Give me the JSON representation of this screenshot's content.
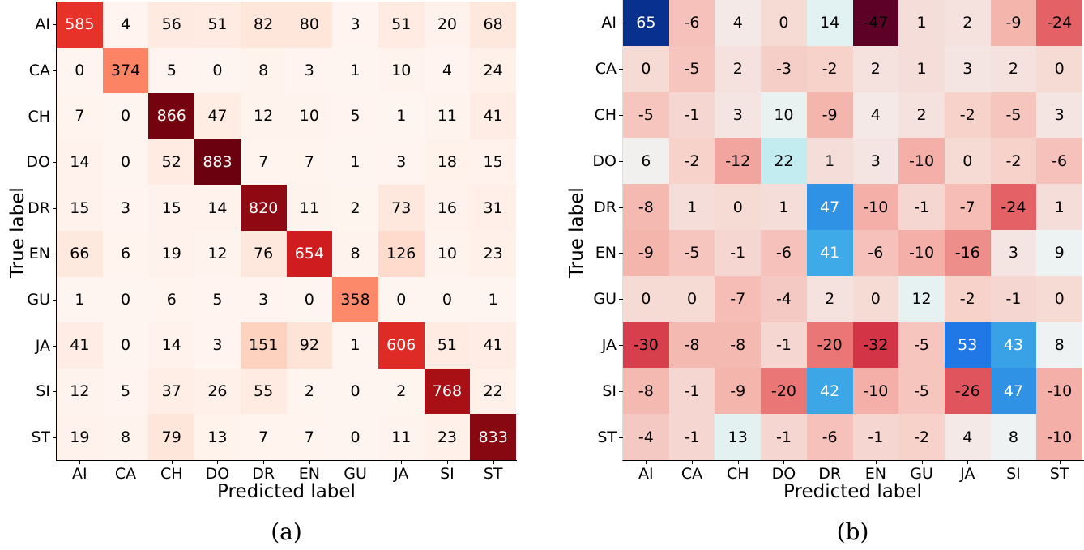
{
  "chart_data": [
    {
      "type": "heatmap",
      "title": "",
      "caption": "(a)",
      "xlabel": "Predicted label",
      "ylabel": "True label",
      "x_categories": [
        "AI",
        "CA",
        "CH",
        "DO",
        "DR",
        "EN",
        "GU",
        "JA",
        "SI",
        "ST"
      ],
      "y_categories": [
        "AI",
        "CA",
        "CH",
        "DO",
        "DR",
        "EN",
        "GU",
        "JA",
        "SI",
        "ST"
      ],
      "colormap": "Reds",
      "values": [
        [
          585,
          4,
          56,
          51,
          82,
          80,
          3,
          51,
          20,
          68
        ],
        [
          0,
          374,
          5,
          0,
          8,
          3,
          1,
          10,
          4,
          24
        ],
        [
          7,
          0,
          866,
          47,
          12,
          10,
          5,
          1,
          11,
          41
        ],
        [
          14,
          0,
          52,
          883,
          7,
          7,
          1,
          3,
          18,
          15
        ],
        [
          15,
          3,
          15,
          14,
          820,
          11,
          2,
          73,
          16,
          31
        ],
        [
          66,
          6,
          19,
          12,
          76,
          654,
          8,
          126,
          10,
          23
        ],
        [
          1,
          0,
          6,
          5,
          3,
          0,
          358,
          0,
          0,
          1
        ],
        [
          41,
          0,
          14,
          3,
          151,
          92,
          1,
          606,
          51,
          41
        ],
        [
          12,
          5,
          37,
          26,
          55,
          2,
          0,
          2,
          768,
          22
        ],
        [
          19,
          8,
          79,
          13,
          7,
          7,
          0,
          11,
          23,
          833
        ]
      ]
    },
    {
      "type": "heatmap",
      "title": "",
      "caption": "(b)",
      "xlabel": "Predicted label",
      "ylabel": "True label",
      "x_categories": [
        "AI",
        "CA",
        "CH",
        "DO",
        "DR",
        "EN",
        "GU",
        "JA",
        "SI",
        "ST"
      ],
      "y_categories": [
        "AI",
        "CA",
        "CH",
        "DO",
        "DR",
        "EN",
        "GU",
        "JA",
        "SI",
        "ST"
      ],
      "colormap": "diverging red-blue",
      "values": [
        [
          65,
          -6,
          4,
          0,
          14,
          -47,
          1,
          2,
          -9,
          -24
        ],
        [
          0,
          -5,
          2,
          -3,
          -2,
          2,
          1,
          3,
          2,
          0
        ],
        [
          -5,
          -1,
          3,
          10,
          -9,
          4,
          2,
          -2,
          -5,
          3
        ],
        [
          6,
          -2,
          -12,
          22,
          1,
          3,
          -10,
          0,
          -2,
          -6
        ],
        [
          -8,
          1,
          0,
          1,
          47,
          -10,
          -1,
          -7,
          -24,
          1
        ],
        [
          -9,
          -5,
          -1,
          -6,
          41,
          -6,
          -10,
          -16,
          3,
          9
        ],
        [
          0,
          0,
          -7,
          -4,
          2,
          0,
          12,
          -2,
          -1,
          0
        ],
        [
          -30,
          -8,
          -8,
          -1,
          -20,
          -32,
          -5,
          53,
          43,
          8
        ],
        [
          -8,
          -1,
          -9,
          -20,
          42,
          -10,
          -5,
          -26,
          47,
          -10
        ],
        [
          -4,
          -1,
          13,
          -1,
          -6,
          -1,
          -2,
          4,
          8,
          -10
        ]
      ]
    }
  ]
}
